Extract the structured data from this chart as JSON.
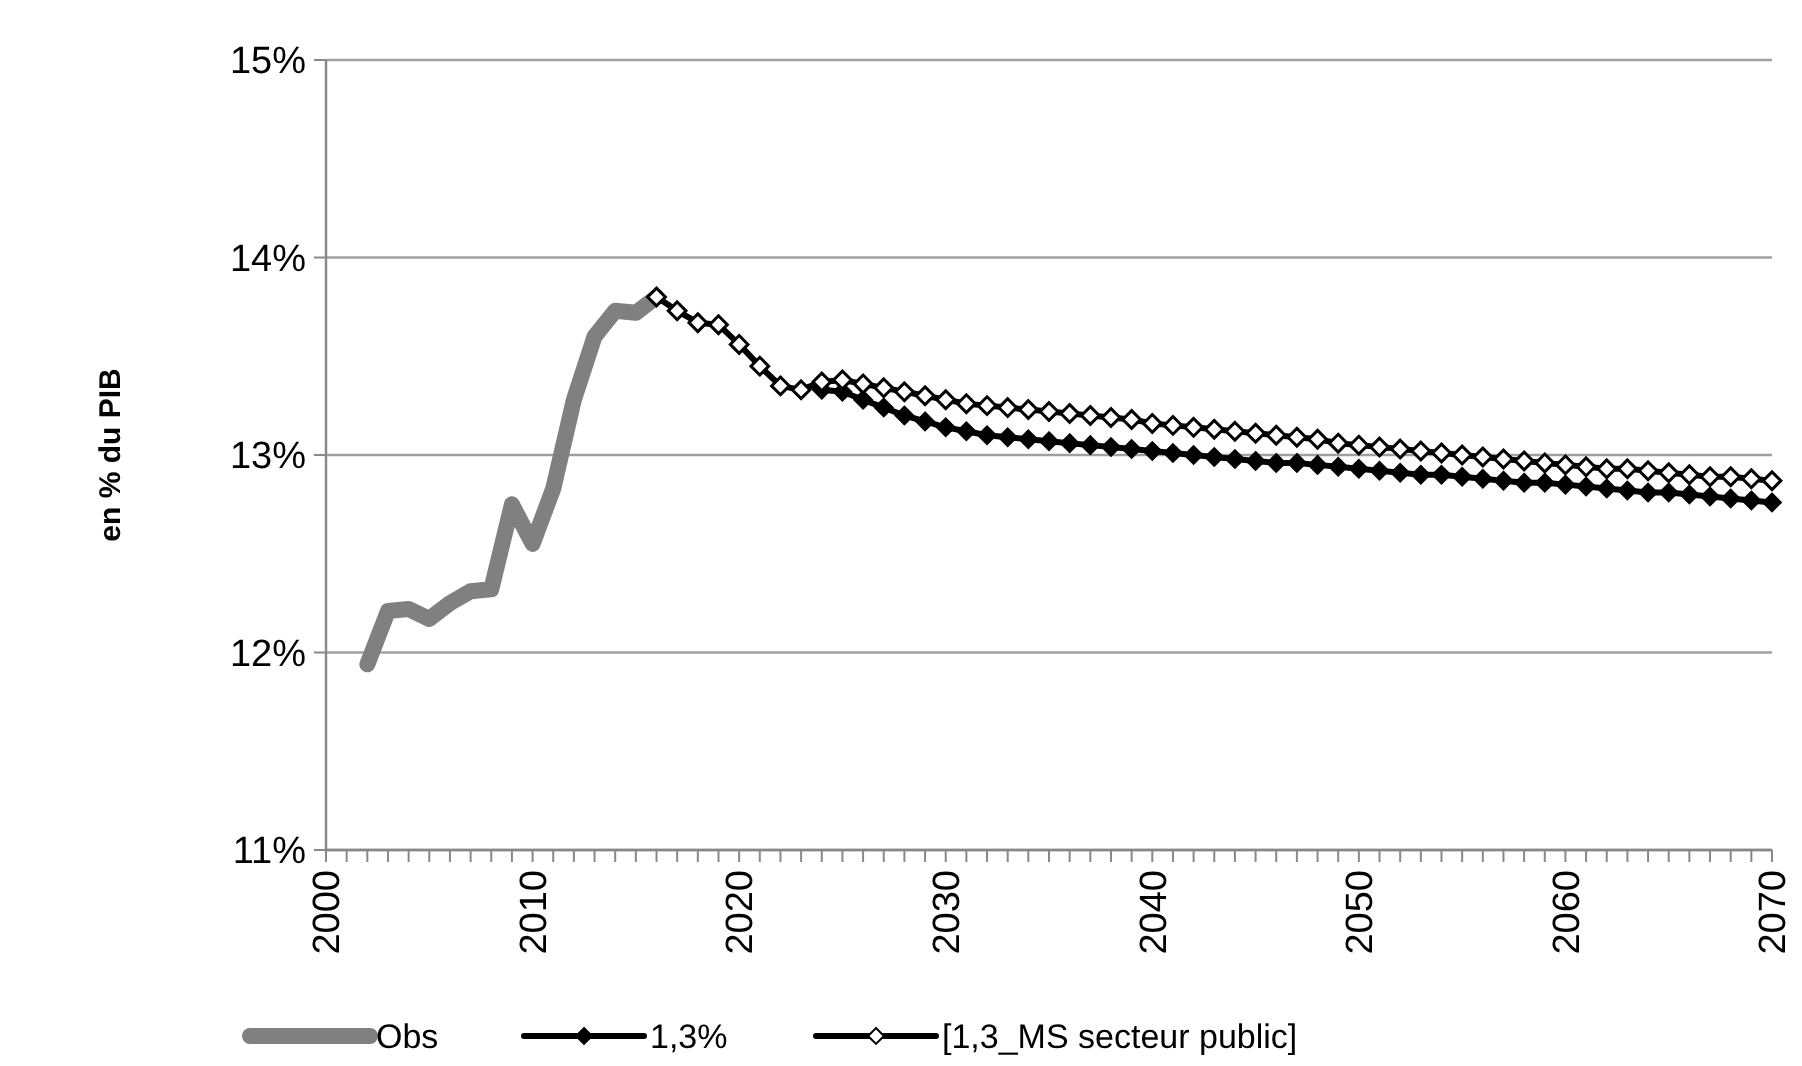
{
  "chart_data": {
    "type": "line",
    "ylabel": "en % du PIB",
    "xlim": [
      2000,
      2070
    ],
    "ylim": [
      11,
      15
    ],
    "yticks": [
      {
        "value": 11,
        "label": "11%"
      },
      {
        "value": 12,
        "label": "12%"
      },
      {
        "value": 13,
        "label": "13%"
      },
      {
        "value": 14,
        "label": "14%"
      },
      {
        "value": 15,
        "label": "15%"
      }
    ],
    "xticks": [
      2000,
      {
        "value": 2001,
        "label": null
      },
      {
        "value": 2002,
        "label": null
      },
      {
        "value": 2003,
        "label": null
      },
      {
        "value": 2004,
        "label": null
      },
      {
        "value": 2005,
        "label": null
      },
      {
        "value": 2006,
        "label": null
      },
      {
        "value": 2007,
        "label": null
      },
      {
        "value": 2008,
        "label": null
      },
      {
        "value": 2009,
        "label": null
      },
      2010,
      {
        "value": 2011,
        "label": null
      },
      {
        "value": 2012,
        "label": null
      },
      {
        "value": 2013,
        "label": null
      },
      {
        "value": 2014,
        "label": null
      },
      {
        "value": 2015,
        "label": null
      },
      {
        "value": 2016,
        "label": null
      },
      {
        "value": 2017,
        "label": null
      },
      {
        "value": 2018,
        "label": null
      },
      {
        "value": 2019,
        "label": null
      },
      2020,
      {
        "value": 2021,
        "label": null
      },
      {
        "value": 2022,
        "label": null
      },
      {
        "value": 2023,
        "label": null
      },
      {
        "value": 2024,
        "label": null
      },
      {
        "value": 2025,
        "label": null
      },
      {
        "value": 2026,
        "label": null
      },
      {
        "value": 2027,
        "label": null
      },
      {
        "value": 2028,
        "label": null
      },
      {
        "value": 2029,
        "label": null
      },
      2030,
      {
        "value": 2031,
        "label": null
      },
      {
        "value": 2032,
        "label": null
      },
      {
        "value": 2033,
        "label": null
      },
      {
        "value": 2034,
        "label": null
      },
      {
        "value": 2035,
        "label": null
      },
      {
        "value": 2036,
        "label": null
      },
      {
        "value": 2037,
        "label": null
      },
      {
        "value": 2038,
        "label": null
      },
      {
        "value": 2039,
        "label": null
      },
      2040,
      {
        "value": 2041,
        "label": null
      },
      {
        "value": 2042,
        "label": null
      },
      {
        "value": 2043,
        "label": null
      },
      {
        "value": 2044,
        "label": null
      },
      {
        "value": 2045,
        "label": null
      },
      {
        "value": 2046,
        "label": null
      },
      {
        "value": 2047,
        "label": null
      },
      {
        "value": 2048,
        "label": null
      },
      {
        "value": 2049,
        "label": null
      },
      2050,
      {
        "value": 2051,
        "label": null
      },
      {
        "value": 2052,
        "label": null
      },
      {
        "value": 2053,
        "label": null
      },
      {
        "value": 2054,
        "label": null
      },
      {
        "value": 2055,
        "label": null
      },
      {
        "value": 2056,
        "label": null
      },
      {
        "value": 2057,
        "label": null
      },
      {
        "value": 2058,
        "label": null
      },
      {
        "value": 2059,
        "label": null
      },
      2060,
      {
        "value": 2061,
        "label": null
      },
      {
        "value": 2062,
        "label": null
      },
      {
        "value": 2063,
        "label": null
      },
      {
        "value": 2064,
        "label": null
      },
      {
        "value": 2065,
        "label": null
      },
      {
        "value": 2066,
        "label": null
      },
      {
        "value": 2067,
        "label": null
      },
      {
        "value": 2068,
        "label": null
      },
      {
        "value": 2069,
        "label": null
      },
      2070
    ],
    "grid": "y",
    "legend": "bottom",
    "series": [
      {
        "name": "Obs",
        "color": "#808080",
        "marker": "none",
        "x": [
          2002,
          2003,
          2004,
          2005,
          2006,
          2007,
          2008,
          2009,
          2010,
          2011,
          2012,
          2013,
          2014,
          2015,
          2016
        ],
        "values": [
          11.94,
          12.21,
          12.22,
          12.17,
          12.25,
          12.31,
          12.32,
          12.75,
          12.55,
          12.83,
          13.28,
          13.6,
          13.73,
          13.72,
          13.8
        ]
      },
      {
        "name": "1,3%",
        "color": "#000000",
        "marker": "diamond",
        "x": [
          2024,
          2025,
          2026,
          2027,
          2028,
          2029,
          2030,
          2031,
          2032,
          2033,
          2034,
          2035,
          2036,
          2037,
          2038,
          2039,
          2040,
          2041,
          2042,
          2043,
          2044,
          2045,
          2046,
          2047,
          2048,
          2049,
          2050,
          2051,
          2052,
          2053,
          2054,
          2055,
          2056,
          2057,
          2058,
          2059,
          2060,
          2061,
          2062,
          2063,
          2064,
          2065,
          2066,
          2067,
          2068,
          2069,
          2070
        ],
        "values": [
          13.33,
          13.32,
          13.28,
          13.24,
          13.2,
          13.17,
          13.14,
          13.12,
          13.1,
          13.09,
          13.08,
          13.07,
          13.06,
          13.05,
          13.04,
          13.03,
          13.02,
          13.01,
          13.0,
          12.99,
          12.98,
          12.97,
          12.96,
          12.96,
          12.95,
          12.94,
          12.93,
          12.92,
          12.91,
          12.9,
          12.9,
          12.89,
          12.88,
          12.87,
          12.86,
          12.86,
          12.85,
          12.84,
          12.83,
          12.82,
          12.81,
          12.81,
          12.8,
          12.79,
          12.78,
          12.77,
          12.76
        ]
      },
      {
        "name": "[1,3_MS secteur public]",
        "color": "#000000",
        "marker": "diamond",
        "x": [
          2016,
          2017,
          2018,
          2019,
          2020,
          2021,
          2022,
          2023,
          2024,
          2025,
          2026,
          2027,
          2028,
          2029,
          2030,
          2031,
          2032,
          2033,
          2034,
          2035,
          2036,
          2037,
          2038,
          2039,
          2040,
          2041,
          2042,
          2043,
          2044,
          2045,
          2046,
          2047,
          2048,
          2049,
          2050,
          2051,
          2052,
          2053,
          2054,
          2055,
          2056,
          2057,
          2058,
          2059,
          2060,
          2061,
          2062,
          2063,
          2064,
          2065,
          2066,
          2067,
          2068,
          2069,
          2070
        ],
        "values": [
          13.8,
          13.73,
          13.67,
          13.66,
          13.56,
          13.45,
          13.35,
          13.33,
          13.37,
          13.38,
          13.36,
          13.34,
          13.32,
          13.3,
          13.28,
          13.26,
          13.25,
          13.24,
          13.23,
          13.22,
          13.21,
          13.2,
          13.19,
          13.18,
          13.16,
          13.15,
          13.14,
          13.13,
          13.12,
          13.11,
          13.1,
          13.09,
          13.08,
          13.06,
          13.05,
          13.04,
          13.03,
          13.02,
          13.01,
          13.0,
          12.99,
          12.98,
          12.97,
          12.96,
          12.95,
          12.94,
          12.93,
          12.93,
          12.92,
          12.91,
          12.9,
          12.89,
          12.89,
          12.88,
          12.87
        ]
      }
    ]
  }
}
